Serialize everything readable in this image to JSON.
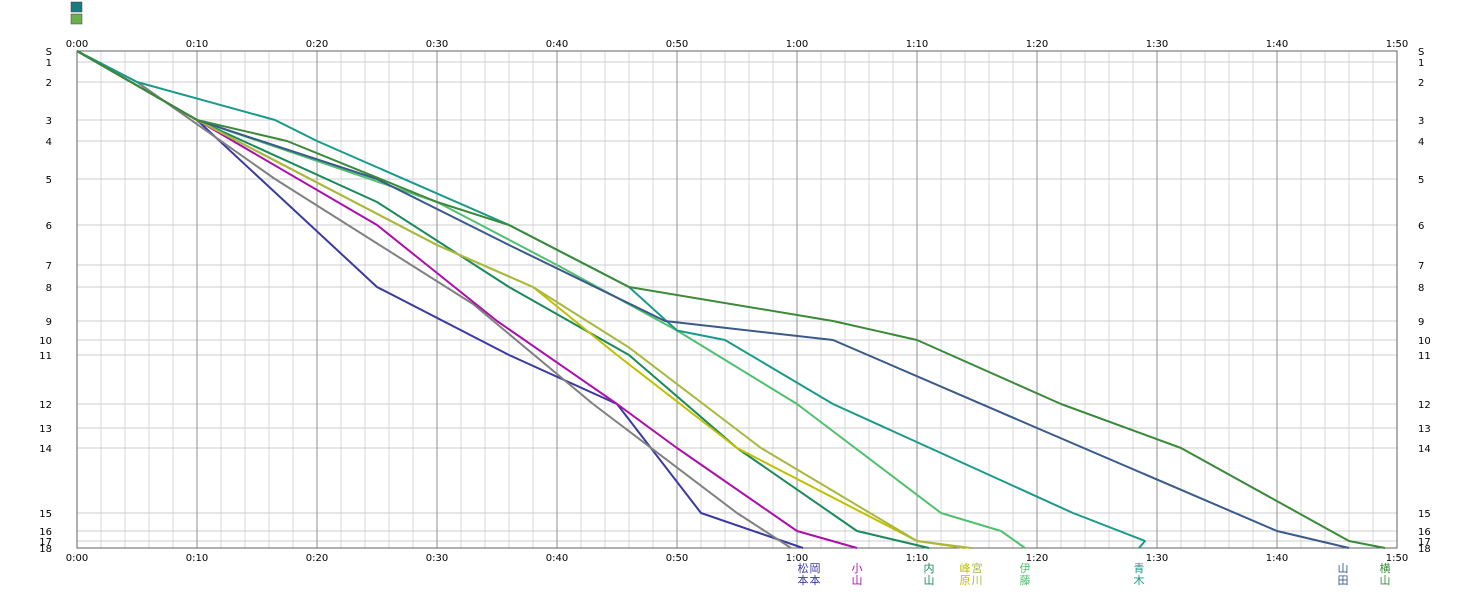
{
  "legend_swatches": [
    {
      "color": "#1a7a80"
    },
    {
      "color": "#6ab04c"
    }
  ],
  "chart_data": {
    "type": "line",
    "title": "",
    "xlabel": "",
    "ylabel": "",
    "x_unit": "minutes",
    "xlim": [
      0,
      110
    ],
    "ylim": [
      "S",
      "18"
    ],
    "grid": true,
    "x_ticks": [
      "0:00",
      "0:10",
      "0:20",
      "0:30",
      "0:40",
      "0:50",
      "1:00",
      "1:10",
      "1:20",
      "1:30",
      "1:40",
      "1:50"
    ],
    "x_tick_values": [
      0,
      10,
      20,
      30,
      40,
      50,
      60,
      70,
      80,
      90,
      100,
      110
    ],
    "stations": [
      "S",
      "1",
      "2",
      "3",
      "4",
      "5",
      "6",
      "7",
      "8",
      "9",
      "10",
      "11",
      "12",
      "13",
      "14",
      "15",
      "16",
      "17",
      "18"
    ],
    "series": [
      {
        "color": "#3a3aa0",
        "points": [
          [
            0,
            0
          ],
          [
            10,
            3
          ],
          [
            25,
            8
          ],
          [
            36,
            11
          ],
          [
            45,
            12
          ],
          [
            52,
            15
          ],
          [
            60.5,
            18
          ]
        ]
      },
      {
        "color": "#808080",
        "points": [
          [
            0,
            0
          ],
          [
            5,
            2
          ],
          [
            16.5,
            5
          ],
          [
            33,
            8.5
          ],
          [
            43,
            12
          ],
          [
            55,
            15
          ],
          [
            59.5,
            18
          ]
        ]
      },
      {
        "color": "#aa10aa",
        "points": [
          [
            0,
            0
          ],
          [
            10,
            3
          ],
          [
            25,
            6
          ],
          [
            35,
            9
          ],
          [
            45,
            12
          ],
          [
            50,
            14
          ],
          [
            60,
            16
          ],
          [
            65,
            18
          ]
        ]
      },
      {
        "color": "#1a8a5a",
        "points": [
          [
            0,
            0
          ],
          [
            10,
            3
          ],
          [
            25,
            5.5
          ],
          [
            36,
            8
          ],
          [
            46,
            11
          ],
          [
            55,
            14
          ],
          [
            65,
            16
          ],
          [
            71,
            18
          ]
        ]
      },
      {
        "color": "#c0c000",
        "points": [
          [
            0,
            0
          ],
          [
            10,
            3
          ],
          [
            30,
            6.5
          ],
          [
            38,
            8
          ],
          [
            45,
            11
          ],
          [
            55,
            14
          ],
          [
            70,
            17
          ],
          [
            74,
            18
          ]
        ]
      },
      {
        "color": "#a8b840",
        "points": [
          [
            0,
            0
          ],
          [
            10,
            3
          ],
          [
            30,
            6.5
          ],
          [
            38,
            8
          ],
          [
            46,
            10.5
          ],
          [
            57,
            14
          ],
          [
            70,
            17
          ],
          [
            74.5,
            18
          ]
        ]
      },
      {
        "color": "#50c070",
        "points": [
          [
            0,
            0
          ],
          [
            10,
            3
          ],
          [
            30,
            5.5
          ],
          [
            40,
            7
          ],
          [
            50,
            9.5
          ],
          [
            60,
            12
          ],
          [
            72,
            15
          ],
          [
            77,
            16
          ],
          [
            79,
            18
          ]
        ]
      },
      {
        "color": "#1a9a8a",
        "points": [
          [
            0,
            0
          ],
          [
            5,
            2
          ],
          [
            16.5,
            3
          ],
          [
            20,
            4
          ],
          [
            36,
            6
          ],
          [
            46,
            8
          ],
          [
            50,
            9.5
          ],
          [
            54,
            10
          ],
          [
            63,
            12
          ],
          [
            83,
            15
          ],
          [
            89,
            17
          ],
          [
            88.5,
            18
          ]
        ]
      },
      {
        "color": "#3a5a8a",
        "points": [
          [
            0,
            0
          ],
          [
            10,
            3
          ],
          [
            25,
            5
          ],
          [
            36,
            6.5
          ],
          [
            49,
            9
          ],
          [
            63,
            10
          ],
          [
            80,
            13
          ],
          [
            100,
            16
          ],
          [
            106,
            18
          ]
        ]
      },
      {
        "color": "#3a8a3a",
        "points": [
          [
            0,
            0
          ],
          [
            10,
            3
          ],
          [
            17.5,
            4
          ],
          [
            30,
            5.5
          ],
          [
            36,
            6
          ],
          [
            46,
            8
          ],
          [
            63,
            9
          ],
          [
            70,
            10
          ],
          [
            82,
            12
          ],
          [
            92,
            14
          ],
          [
            106,
            17
          ],
          [
            109,
            18
          ]
        ]
      }
    ],
    "terminal_labels": [
      {
        "text": "松本",
        "color": "#3a3aa0",
        "x": 60.5
      },
      {
        "text": "岡本",
        "color": "#3a3aa0",
        "x": 61.5
      },
      {
        "text": "小山",
        "color": "#aa10aa",
        "x": 65
      },
      {
        "text": "内山",
        "color": "#1a8a5a",
        "x": 71
      },
      {
        "text": "峰原",
        "color": "#c0c000",
        "x": 74
      },
      {
        "text": "宮川",
        "color": "#a8b840",
        "x": 75
      },
      {
        "text": "伊藤",
        "color": "#50c070",
        "x": 79
      },
      {
        "text": "青木",
        "color": "#1a9a8a",
        "x": 88.5
      },
      {
        "text": "山田",
        "color": "#3a5a8a",
        "x": 105.5
      },
      {
        "text": "横山",
        "color": "#3a8a3a",
        "x": 109
      }
    ]
  }
}
